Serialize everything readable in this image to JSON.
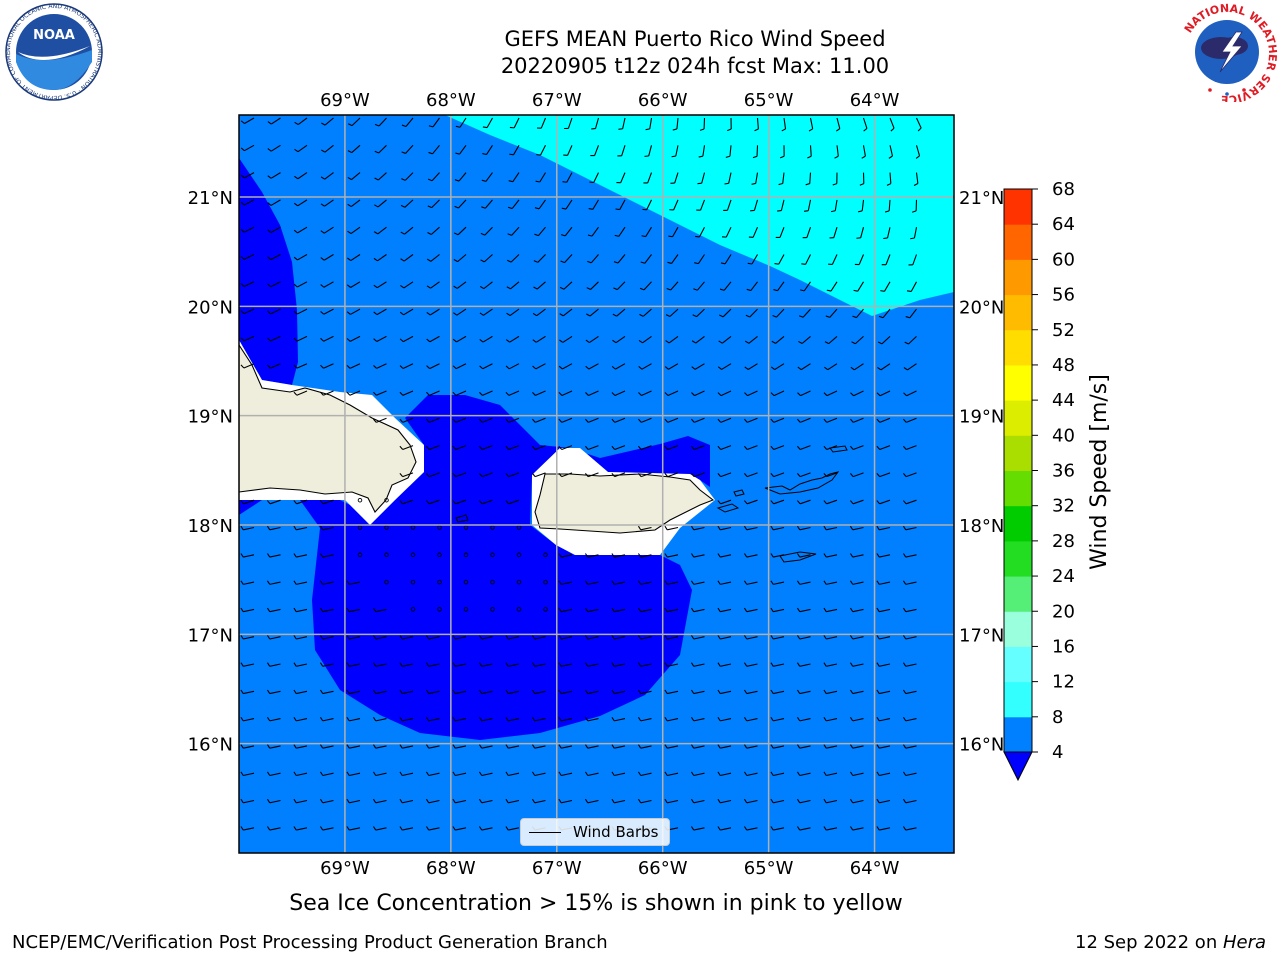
{
  "header": {
    "title_line1": "GEFS MEAN Puerto Rico Wind Speed",
    "title_line2": "20220905 t12z 024h fcst   Max: 11.00"
  },
  "map": {
    "lon_labels": [
      "69°W",
      "68°W",
      "67°W",
      "66°W",
      "65°W",
      "64°W"
    ],
    "lat_labels": [
      "21°N",
      "20°N",
      "19°N",
      "18°N",
      "17°N",
      "16°N"
    ],
    "lon_range": [
      -70,
      -63.25
    ],
    "lat_range": [
      15,
      21.75
    ],
    "legend_label": "Wind Barbs"
  },
  "colorbar": {
    "label": "Wind Speed [m/s]",
    "ticks": [
      "4",
      "8",
      "12",
      "16",
      "20",
      "24",
      "28",
      "32",
      "36",
      "40",
      "44",
      "48",
      "52",
      "56",
      "60",
      "64",
      "68"
    ],
    "colors": [
      "#0080ff",
      "#00e5ff",
      "#33ffff",
      "#66ffff",
      "#99ffdd",
      "#55ee77",
      "#22dd22",
      "#00cc00",
      "#66dd00",
      "#aadd00",
      "#dded00",
      "#ffff00",
      "#ffdd00",
      "#ffbb00",
      "#ff9900",
      "#ff6600",
      "#ff3300",
      "#ff0000"
    ],
    "under_color": "#0000ff"
  },
  "colors": {
    "ws_4_8": "#0080ff",
    "ws_lt_4": "#0000ff",
    "ws_8_12": "#00ffff",
    "land": "#efeedc",
    "grid": "#b0b0b0"
  },
  "logos": {
    "noaa_text": "NOAA",
    "noaa_ring_text": "NATIONAL OCEANIC AND ATMOSPHERIC ADMINISTRATION · U.S. DEPARTMENT OF COMMERCE",
    "nws_ring_text": "NATIONAL WEATHER SERVICE"
  },
  "note": "Sea Ice Concentration > 15% is shown in pink to yellow",
  "footer": {
    "left": "NCEP/EMC/Verification Post Processing Product Generation Branch",
    "right_prefix": "12 Sep 2022 on ",
    "right_host": "Hera"
  }
}
